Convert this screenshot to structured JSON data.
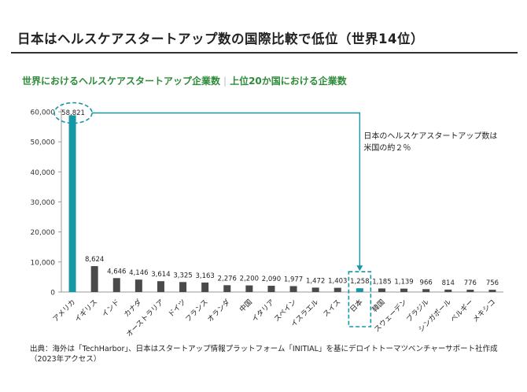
{
  "header": {
    "title": "日本はヘルスケアスタートアップ数の国際比較で低位（世界14位）"
  },
  "subtitle": {
    "left": "世界におけるヘルスケアスタートアップ企業数",
    "separator": "|",
    "right": "上位20か国における企業数"
  },
  "annotation": {
    "line1": "日本のヘルスケアスタートアップ数は",
    "line2": "米国の約２％"
  },
  "footer": {
    "source_line1": "出典：海外は「TechHarbor」、日本はスタートアップ情報プラットフォーム「INITIAL」を基にデロイトトーマツベンチャーサポート社作成",
    "source_line2": "（2023年アクセス）"
  },
  "colors": {
    "highlight": "#1597a6",
    "default_bar": "#4a4a4a",
    "axis": "#999999",
    "subtitle": "#2e8b3a"
  },
  "chart_data": {
    "type": "bar",
    "categories": [
      "アメリカ",
      "イギリス",
      "インド",
      "カナダ",
      "オーストラリア",
      "ドイツ",
      "フランス",
      "オランダ",
      "中国",
      "イタリア",
      "スペイン",
      "イスラエル",
      "スイス",
      "日本",
      "韓国",
      "スウェーデン",
      "ブラジル",
      "シンガポール",
      "ベルギー",
      "メキシコ"
    ],
    "values": [
      58821,
      8624,
      4646,
      4146,
      3614,
      3325,
      3163,
      2276,
      2200,
      2090,
      1977,
      1472,
      1403,
      1258,
      1185,
      1139,
      966,
      814,
      776,
      756
    ],
    "value_labels": [
      "58,821",
      "8,624",
      "4,646",
      "4,146",
      "3,614",
      "3,325",
      "3,163",
      "2,276",
      "2,200",
      "2,090",
      "1,977",
      "1,472",
      "1,403",
      "1,258",
      "1,185",
      "1,139",
      "966",
      "814",
      "776",
      "756"
    ],
    "highlight_categories": [
      "アメリカ",
      "日本"
    ],
    "yticks": [
      0,
      10000,
      20000,
      30000,
      40000,
      50000,
      60000
    ],
    "ytick_labels": [
      "0",
      "10,000",
      "20,000",
      "30,000",
      "40,000",
      "50,000",
      "60,000"
    ],
    "ylim": [
      0,
      60000
    ],
    "grid": false,
    "legend": "none"
  }
}
